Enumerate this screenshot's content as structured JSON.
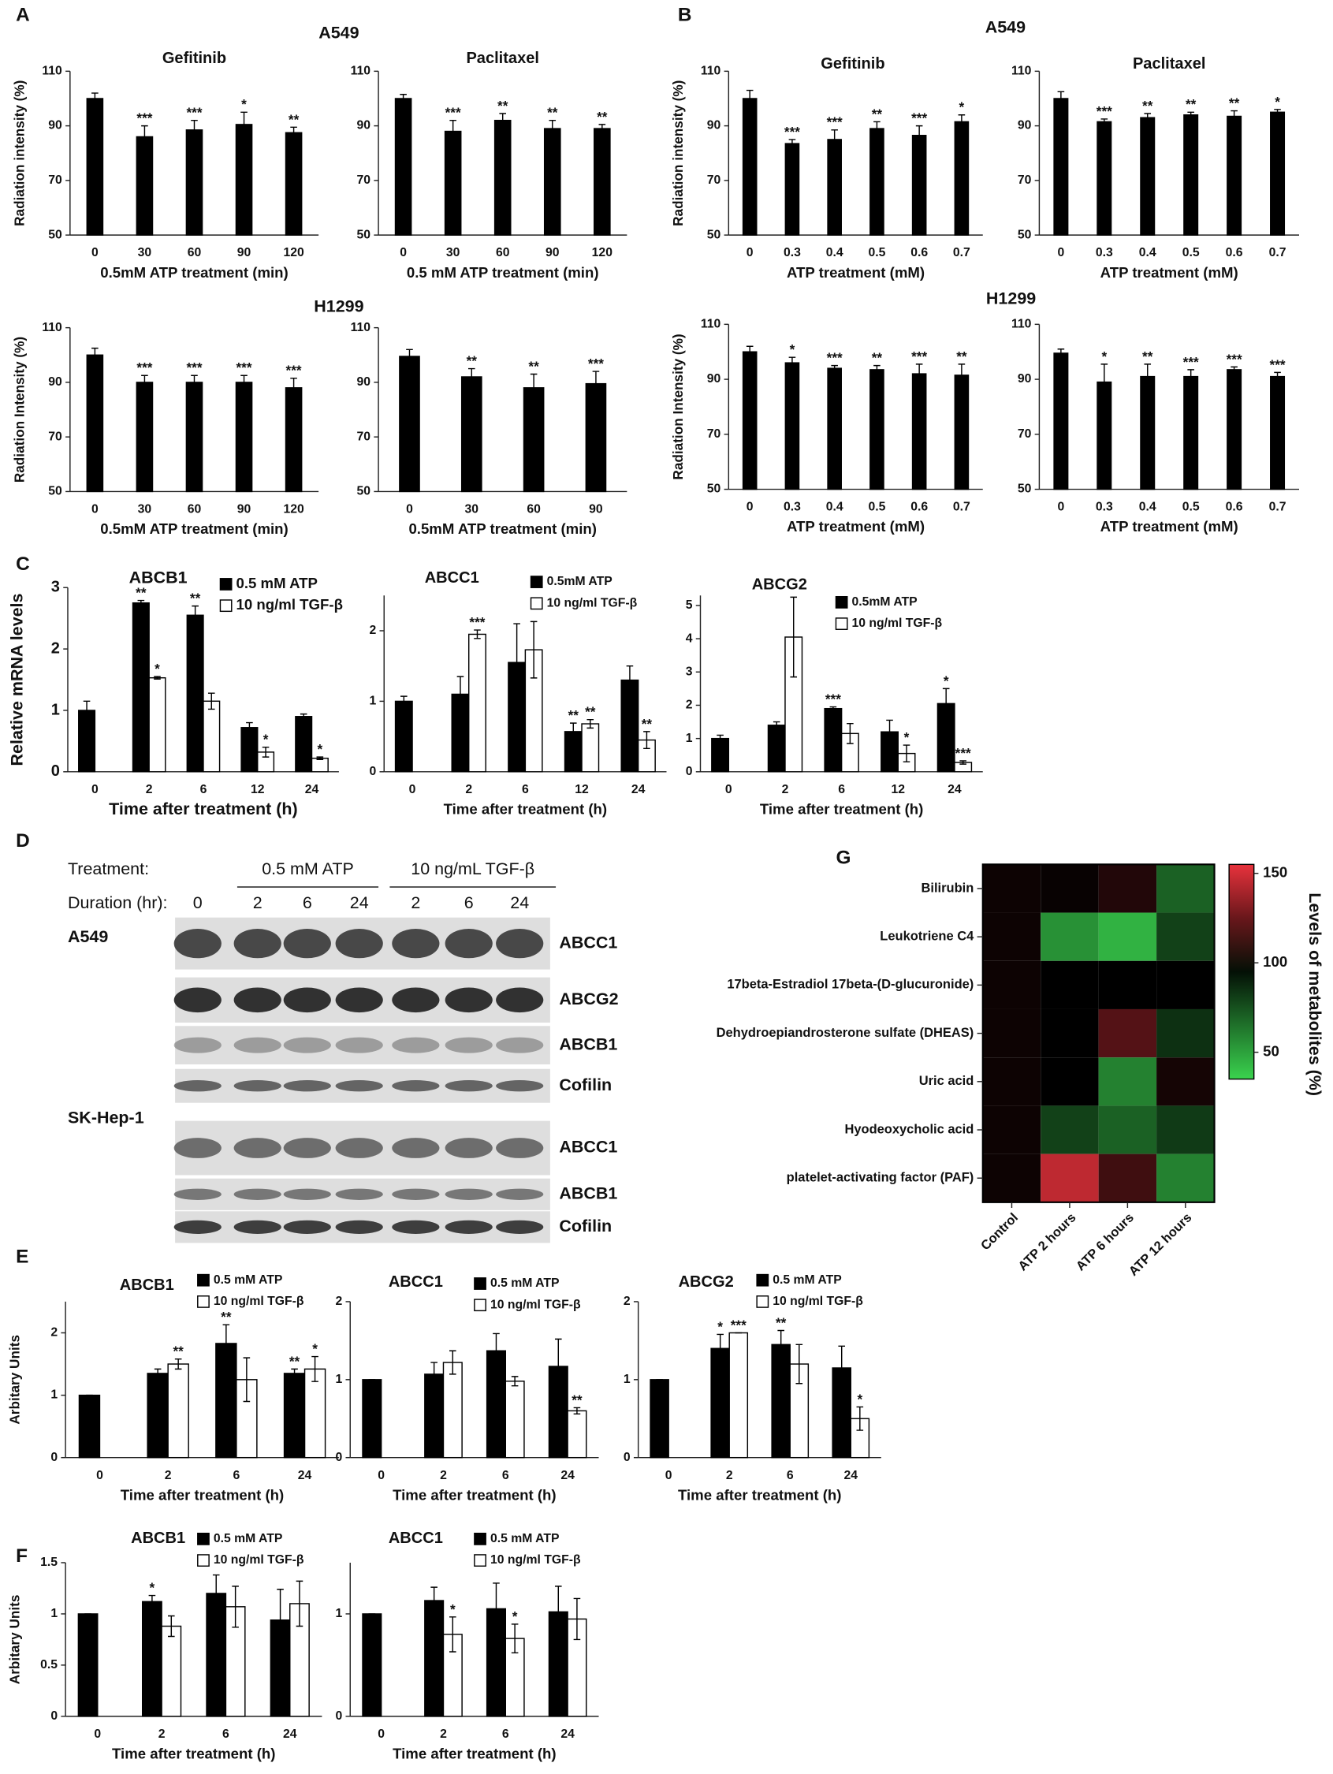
{
  "panel_labels": [
    "A",
    "B",
    "C",
    "D",
    "E",
    "F",
    "G"
  ],
  "group_titles": [
    "A549",
    "H1299",
    "A549",
    "H1299"
  ],
  "blot": {
    "treatment_label": "Treatment:",
    "duration_label": "Duration (hr):",
    "treatment_groups": [
      "0.5 mM ATP",
      "10 ng/mL TGF-β"
    ],
    "durations": [
      "0",
      "2",
      "6",
      "24",
      "2",
      "6",
      "24"
    ],
    "cell_lines": [
      {
        "name": "A549",
        "bands": [
          "ABCC1",
          "ABCG2",
          "ABCB1",
          "Cofilin"
        ]
      },
      {
        "name": "SK-Hep-1",
        "bands": [
          "ABCC1",
          "ABCB1",
          "Cofilin"
        ]
      }
    ]
  },
  "chart_data": [
    {
      "type": "bar",
      "title": "Gefitinib",
      "categories": [
        "0",
        "30",
        "60",
        "90",
        "120"
      ],
      "series": [
        {
          "color": "#000000",
          "values": [
            100,
            86,
            88.5,
            90.5,
            87.5
          ],
          "errors": [
            2,
            4,
            3.5,
            4.5,
            2
          ],
          "annotations": [
            null,
            "***",
            "***",
            "*",
            "**"
          ]
        }
      ],
      "ylim": [
        50,
        110
      ],
      "yticks": [
        50,
        70,
        90,
        110
      ],
      "ylabel": "Radiation intensity (%)",
      "xlabel": "0.5mM ATP treatment (min)"
    },
    {
      "type": "bar",
      "title": "Paclitaxel",
      "categories": [
        "0",
        "30",
        "60",
        "90",
        "120"
      ],
      "series": [
        {
          "color": "#000000",
          "values": [
            100,
            88,
            92,
            89,
            89
          ],
          "errors": [
            1.5,
            4,
            2.5,
            3,
            1.5
          ],
          "annotations": [
            null,
            "***",
            "**",
            "**",
            "**"
          ]
        }
      ],
      "ylim": [
        50,
        110
      ],
      "yticks": [
        50,
        70,
        90,
        110
      ],
      "xlabel": "0.5 mM ATP treatment (min)"
    },
    {
      "type": "bar",
      "categories": [
        "0",
        "30",
        "60",
        "90",
        "120"
      ],
      "series": [
        {
          "color": "#000000",
          "values": [
            100,
            90,
            90,
            90,
            88
          ],
          "errors": [
            2.5,
            2.5,
            2.5,
            2.5,
            3.5
          ],
          "annotations": [
            null,
            "***",
            "***",
            "***",
            "***"
          ]
        }
      ],
      "ylim": [
        50,
        110
      ],
      "yticks": [
        50,
        70,
        90,
        110
      ],
      "ylabel": "Radiation Intensity (%)",
      "xlabel": "0.5mM ATP treatment (min)"
    },
    {
      "type": "bar",
      "categories": [
        "0",
        "30",
        "60",
        "90"
      ],
      "series": [
        {
          "color": "#000000",
          "values": [
            99.5,
            92,
            88,
            89.5
          ],
          "errors": [
            2.5,
            3,
            5,
            4.5
          ],
          "annotations": [
            null,
            "**",
            "**",
            "***"
          ]
        }
      ],
      "ylim": [
        50,
        110
      ],
      "yticks": [
        50,
        70,
        90,
        110
      ],
      "xlabel": "0.5mM ATP treatment (min)"
    },
    {
      "type": "bar",
      "title": "Gefitinib",
      "categories": [
        "0",
        "0.3",
        "0.4",
        "0.5",
        "0.6",
        "0.7"
      ],
      "series": [
        {
          "color": "#000000",
          "values": [
            100,
            83.5,
            85,
            89,
            86.5,
            91.5
          ],
          "errors": [
            3,
            1.5,
            3.5,
            2.5,
            3.5,
            2.5
          ],
          "annotations": [
            null,
            "***",
            "***",
            "**",
            "***",
            "*"
          ]
        }
      ],
      "ylim": [
        50,
        110
      ],
      "yticks": [
        50,
        70,
        90,
        110
      ],
      "ylabel": "Radiation intensity (%)",
      "xlabel": "ATP treatment (mM)"
    },
    {
      "type": "bar",
      "title": "Paclitaxel",
      "categories": [
        "0",
        "0.3",
        "0.4",
        "0.5",
        "0.6",
        "0.7"
      ],
      "series": [
        {
          "color": "#000000",
          "values": [
            100,
            91.5,
            93,
            94,
            93.5,
            95
          ],
          "errors": [
            2.5,
            1,
            1.5,
            1,
            2,
            1
          ],
          "annotations": [
            null,
            "***",
            "**",
            "**",
            "**",
            "*"
          ]
        }
      ],
      "ylim": [
        50,
        110
      ],
      "yticks": [
        50,
        70,
        90,
        110
      ],
      "xlabel": "ATP treatment (mM)"
    },
    {
      "type": "bar",
      "categories": [
        "0",
        "0.3",
        "0.4",
        "0.5",
        "0.6",
        "0.7"
      ],
      "series": [
        {
          "color": "#000000",
          "values": [
            100,
            96,
            94,
            93.5,
            92,
            91.5
          ],
          "errors": [
            2,
            2,
            1,
            1.5,
            3.5,
            4
          ],
          "annotations": [
            null,
            "*",
            "***",
            "**",
            "***",
            "**"
          ]
        }
      ],
      "ylim": [
        50,
        110
      ],
      "yticks": [
        50,
        70,
        90,
        110
      ],
      "ylabel": "Radiation Intensity (%)",
      "xlabel": "ATP treatment (mM)"
    },
    {
      "type": "bar",
      "categories": [
        "0",
        "0.3",
        "0.4",
        "0.5",
        "0.6",
        "0.7"
      ],
      "series": [
        {
          "color": "#000000",
          "values": [
            99.5,
            89,
            91,
            91,
            93.5,
            91
          ],
          "errors": [
            1.5,
            6.5,
            4.5,
            2.5,
            1,
            1.5
          ],
          "annotations": [
            null,
            "*",
            "**",
            "***",
            "***",
            "***"
          ]
        }
      ],
      "ylim": [
        50,
        110
      ],
      "yticks": [
        50,
        70,
        90,
        110
      ],
      "xlabel": "ATP treatment (mM)"
    },
    {
      "type": "bar",
      "title": "ABCB1",
      "categories": [
        "0",
        "2",
        "6",
        "12",
        "24"
      ],
      "series": [
        {
          "name": "0.5 mM ATP",
          "color": "#000000",
          "values": [
            1,
            2.75,
            2.55,
            0.72,
            0.9
          ],
          "errors": [
            0.15,
            0.04,
            0.15,
            0.08,
            0.04
          ],
          "annotations": [
            null,
            "**",
            "**",
            null,
            null
          ]
        },
        {
          "name": "10 ng/ml TGF-β",
          "color": "#ffffff",
          "values": [
            null,
            1.53,
            1.15,
            0.32,
            0.22
          ],
          "errors": [
            null,
            0.02,
            0.13,
            0.08,
            0.02
          ],
          "annotations": [
            null,
            "*",
            null,
            "*",
            "*"
          ]
        }
      ],
      "ylim": [
        0,
        3
      ],
      "yticks": [
        0,
        1,
        2,
        3
      ],
      "ylabel": "Relative mRNA levels",
      "xlabel": "Time after treatment (h)"
    },
    {
      "type": "bar",
      "title": "ABCC1",
      "categories": [
        "0",
        "2",
        "6",
        "12",
        "24"
      ],
      "series": [
        {
          "name": "0.5mM ATP",
          "color": "#000000",
          "values": [
            1,
            1.1,
            1.55,
            0.57,
            1.3
          ],
          "errors": [
            0.07,
            0.25,
            0.55,
            0.12,
            0.2
          ],
          "annotations": [
            null,
            null,
            null,
            "**",
            null
          ]
        },
        {
          "name": "10 ng/ml TGF-β",
          "color": "#ffffff",
          "values": [
            null,
            1.95,
            1.73,
            0.68,
            0.45
          ],
          "errors": [
            null,
            0.06,
            0.4,
            0.06,
            0.12
          ],
          "annotations": [
            null,
            "***",
            null,
            "**",
            "**"
          ]
        }
      ],
      "ylim": [
        0,
        2.5
      ],
      "yticks": [
        0,
        1,
        2
      ],
      "xlabel": "Time after treatment (h)"
    },
    {
      "type": "bar",
      "title": "ABCG2",
      "categories": [
        "0",
        "2",
        "6",
        "12",
        "24"
      ],
      "series": [
        {
          "name": "0.5mM ATP",
          "color": "#000000",
          "values": [
            1,
            1.4,
            1.9,
            1.2,
            2.05
          ],
          "errors": [
            0.1,
            0.1,
            0.05,
            0.35,
            0.45
          ],
          "annotations": [
            null,
            null,
            "***",
            null,
            "*"
          ]
        },
        {
          "name": "10 ng/ml TGF-β",
          "color": "#ffffff",
          "values": [
            null,
            4.05,
            1.15,
            0.55,
            0.28
          ],
          "errors": [
            null,
            1.2,
            0.3,
            0.25,
            0.05
          ],
          "annotations": [
            null,
            null,
            null,
            "*",
            "***"
          ]
        }
      ],
      "ylim": [
        0,
        5.3
      ],
      "yticks": [
        0,
        1,
        2,
        3,
        4,
        5
      ],
      "xlabel": "Time after treatment (h)"
    },
    {
      "type": "bar",
      "title": "ABCB1",
      "categories": [
        "0",
        "2",
        "6",
        "24"
      ],
      "series": [
        {
          "name": "0.5 mM ATP",
          "color": "#000000",
          "values": [
            1,
            1.35,
            1.83,
            1.35
          ],
          "errors": [
            0,
            0.07,
            0.3,
            0.07
          ],
          "annotations": [
            null,
            null,
            "**",
            "**"
          ]
        },
        {
          "name": "10 ng/ml TGF-β",
          "color": "#ffffff",
          "values": [
            null,
            1.5,
            1.25,
            1.42
          ],
          "errors": [
            null,
            0.08,
            0.35,
            0.2
          ],
          "annotations": [
            null,
            "**",
            null,
            "*"
          ]
        }
      ],
      "ylim": [
        0,
        2.5
      ],
      "yticks": [
        0,
        1,
        2
      ],
      "ylabel": "Arbitary Units",
      "xlabel": "Time after treatment (h)"
    },
    {
      "type": "bar",
      "title": "ABCC1",
      "categories": [
        "0",
        "2",
        "6",
        "24"
      ],
      "series": [
        {
          "name": "0.5 mM ATP",
          "color": "#000000",
          "values": [
            1,
            1.07,
            1.37,
            1.17
          ],
          "errors": [
            0,
            0.15,
            0.22,
            0.35
          ],
          "annotations": [
            null,
            null,
            null,
            null
          ]
        },
        {
          "name": "10 ng/ml TGF-β",
          "color": "#ffffff",
          "values": [
            null,
            1.22,
            0.98,
            0.6
          ],
          "errors": [
            null,
            0.15,
            0.06,
            0.04
          ],
          "annotations": [
            null,
            null,
            null,
            "**"
          ]
        }
      ],
      "ylim": [
        0,
        2
      ],
      "yticks": [
        0,
        1,
        2
      ],
      "xlabel": "Time after treatment (h)"
    },
    {
      "type": "bar",
      "title": "ABCG2",
      "categories": [
        "0",
        "2",
        "6",
        "24"
      ],
      "series": [
        {
          "name": "0.5 mM ATP",
          "color": "#000000",
          "values": [
            1,
            1.4,
            1.45,
            1.15
          ],
          "errors": [
            0,
            0.18,
            0.18,
            0.28
          ],
          "annotations": [
            null,
            "*",
            "**",
            null
          ]
        },
        {
          "name": "10 ng/ml TGF-β",
          "color": "#ffffff",
          "values": [
            null,
            1.6,
            1.2,
            0.5
          ],
          "errors": [
            null,
            0,
            0.25,
            0.15
          ],
          "annotations": [
            null,
            "***",
            null,
            "*"
          ]
        }
      ],
      "ylim": [
        0,
        2
      ],
      "yticks": [
        0,
        1,
        2
      ],
      "xlabel": "Time after treatment (h)"
    },
    {
      "type": "bar",
      "title": "ABCB1",
      "categories": [
        "0",
        "2",
        "6",
        "24"
      ],
      "series": [
        {
          "name": "0.5 mM ATP",
          "color": "#000000",
          "values": [
            1,
            1.12,
            1.2,
            0.94
          ],
          "errors": [
            0,
            0.06,
            0.18,
            0.3
          ],
          "annotations": [
            null,
            "*",
            null,
            null
          ]
        },
        {
          "name": "10 ng/ml TGF-β",
          "color": "#ffffff",
          "values": [
            null,
            0.88,
            1.07,
            1.1
          ],
          "errors": [
            null,
            0.1,
            0.2,
            0.22
          ],
          "annotations": [
            null,
            null,
            null,
            null
          ]
        }
      ],
      "ylim": [
        0,
        1.5
      ],
      "yticks": [
        0,
        0.5,
        1,
        1.5
      ],
      "ylabel": "Arbitary Units",
      "xlabel": "Time after treatment (h)"
    },
    {
      "type": "bar",
      "title": "ABCC1",
      "categories": [
        "0",
        "2",
        "6",
        "24"
      ],
      "series": [
        {
          "name": "0.5 mM ATP",
          "color": "#000000",
          "values": [
            1,
            1.13,
            1.05,
            1.02
          ],
          "errors": [
            0,
            0.13,
            0.25,
            0.25
          ],
          "annotations": [
            null,
            null,
            null,
            null
          ]
        },
        {
          "name": "10 ng/ml TGF-β",
          "color": "#ffffff",
          "values": [
            null,
            0.8,
            0.76,
            0.95
          ],
          "errors": [
            null,
            0.17,
            0.14,
            0.2
          ],
          "annotations": [
            null,
            "*",
            "*",
            null
          ]
        }
      ],
      "ylim": [
        0,
        1.5
      ],
      "yticks": [
        0,
        1
      ],
      "xlabel": "Time after treatment (h)"
    },
    {
      "type": "heatmap",
      "rows": [
        "Bilirubin",
        "Leukotriene C4",
        "17beta-Estradiol 17beta-(D-glucuronide)",
        "Dehydroepiandrosterone sulfate (DHEAS)",
        "Uric acid",
        "Hyodeoxycholic acid",
        "platelet-activating factor (PAF)"
      ],
      "columns": [
        "Control",
        "ATP 2 hours",
        "ATP 6 hours",
        "ATP 12 hours"
      ],
      "values": [
        [
          103,
          102,
          108,
          70
        ],
        [
          103,
          55,
          45,
          80
        ],
        [
          103,
          100,
          100,
          100
        ],
        [
          103,
          100,
          120,
          85
        ],
        [
          103,
          100,
          60,
          105
        ],
        [
          103,
          80,
          70,
          82
        ],
        [
          103,
          145,
          115,
          60
        ]
      ],
      "colorbar": {
        "label": "Levels of metabolites (%)",
        "lim": [
          35,
          155
        ],
        "center": 100,
        "ticks": [
          50,
          100,
          150
        ],
        "low_color": "#3ad24e",
        "mid_color": "#000000",
        "high_color": "#e8323c"
      }
    }
  ]
}
